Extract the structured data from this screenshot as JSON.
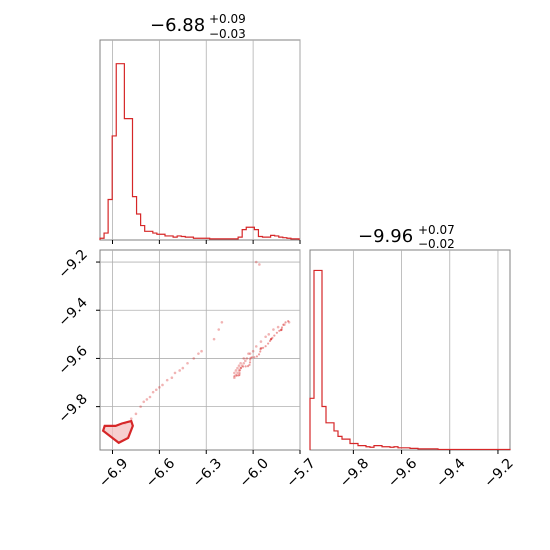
{
  "chart_data": [
    {
      "type": "histogram",
      "panel": "top-left",
      "title": {
        "value": "−6.88",
        "upper": "+0.09",
        "lower": "−0.03"
      },
      "xlim": [
        -6.98,
        -5.7
      ],
      "x_ticks": [
        -6.9,
        -6.6,
        -6.3,
        -6.0,
        -5.7
      ],
      "bins_start": -6.98,
      "bin_width": 0.026,
      "counts": [
        3,
        12,
        70,
        180,
        305,
        305,
        210,
        210,
        75,
        45,
        25,
        15,
        15,
        12,
        10,
        10,
        7,
        7,
        5,
        7,
        6,
        5,
        5,
        3,
        3,
        3,
        3,
        2,
        2,
        2,
        2,
        2,
        2,
        2,
        5,
        18,
        22,
        22,
        18,
        6,
        5,
        5,
        8,
        7,
        5,
        4,
        3,
        2,
        2
      ],
      "ymax": 320,
      "color": "#d62728"
    },
    {
      "type": "scatter",
      "panel": "bottom-left",
      "xlim": [
        -6.98,
        -5.7
      ],
      "ylim": [
        -9.98,
        -9.15
      ],
      "x_ticks": [
        -6.9,
        -6.6,
        -6.3,
        -6.0,
        -5.7
      ],
      "y_ticks": [
        -9.2,
        -9.4,
        -9.6,
        -9.8
      ],
      "x_tick_labels": [
        "−6.9",
        "−6.6",
        "−6.3",
        "−6.0",
        "−5.7"
      ],
      "y_tick_labels": [
        "−9.2",
        "−9.4",
        "−9.6",
        "−9.8"
      ],
      "points": [
        [
          -6.82,
          -9.87
        ],
        [
          -6.78,
          -9.85
        ],
        [
          -6.75,
          -9.83
        ],
        [
          -6.72,
          -9.8
        ],
        [
          -6.7,
          -9.78
        ],
        [
          -6.68,
          -9.77
        ],
        [
          -6.66,
          -9.76
        ],
        [
          -6.64,
          -9.74
        ],
        [
          -6.62,
          -9.73
        ],
        [
          -6.6,
          -9.72
        ],
        [
          -6.58,
          -9.71
        ],
        [
          -6.55,
          -9.69
        ],
        [
          -6.52,
          -9.68
        ],
        [
          -6.5,
          -9.66
        ],
        [
          -6.47,
          -9.65
        ],
        [
          -6.45,
          -9.64
        ],
        [
          -6.42,
          -9.62
        ],
        [
          -6.38,
          -9.6
        ],
        [
          -6.35,
          -9.58
        ],
        [
          -6.33,
          -9.57
        ],
        [
          -6.25,
          -9.52
        ],
        [
          -6.22,
          -9.48
        ],
        [
          -6.2,
          -9.45
        ],
        [
          -6.12,
          -9.68
        ],
        [
          -6.11,
          -9.67
        ],
        [
          -6.1,
          -9.66
        ],
        [
          -6.09,
          -9.65
        ],
        [
          -6.08,
          -9.64
        ],
        [
          -6.07,
          -9.63
        ],
        [
          -6.06,
          -9.62
        ],
        [
          -6.05,
          -9.61
        ],
        [
          -6.04,
          -9.6
        ],
        [
          -6.02,
          -9.58
        ],
        [
          -6.0,
          -9.57
        ],
        [
          -5.98,
          -9.55
        ],
        [
          -5.95,
          -9.53
        ],
        [
          -5.92,
          -9.51
        ],
        [
          -5.9,
          -9.5
        ],
        [
          -5.87,
          -9.48
        ],
        [
          -5.84,
          -9.47
        ],
        [
          -5.8,
          -9.46
        ],
        [
          -5.77,
          -9.45
        ],
        [
          -6.11,
          -9.65
        ],
        [
          -6.1,
          -9.64
        ],
        [
          -6.08,
          -9.62
        ],
        [
          -6.06,
          -9.6
        ],
        [
          -6.03,
          -9.58
        ],
        [
          -6.12,
          -9.66
        ],
        [
          -6.09,
          -9.63
        ],
        [
          -5.98,
          -9.2
        ],
        [
          -5.96,
          -9.21
        ]
      ],
      "density_region": [
        [
          -6.96,
          -9.9
        ],
        [
          -6.9,
          -9.93
        ],
        [
          -6.86,
          -9.95
        ],
        [
          -6.8,
          -9.93
        ],
        [
          -6.77,
          -9.88
        ],
        [
          -6.78,
          -9.86
        ],
        [
          -6.84,
          -9.87
        ],
        [
          -6.88,
          -9.88
        ],
        [
          -6.92,
          -9.88
        ],
        [
          -6.95,
          -9.88
        ]
      ],
      "color": "#d62728"
    },
    {
      "type": "histogram",
      "panel": "bottom-right",
      "title": {
        "value": "−9.96",
        "upper": "+0.07",
        "lower": "−0.02"
      },
      "xlim": [
        -9.98,
        -9.15
      ],
      "x_ticks": [
        -9.8,
        -9.6,
        -9.4,
        -9.2
      ],
      "x_tick_labels": [
        "−9.8",
        "−9.6",
        "−9.4",
        "−9.2"
      ],
      "bins_start": -9.98,
      "bin_width": 0.0166,
      "counts": [
        95,
        330,
        330,
        80,
        50,
        50,
        35,
        25,
        20,
        20,
        12,
        12,
        8,
        8,
        6,
        5,
        8,
        8,
        6,
        6,
        5,
        6,
        4,
        4,
        4,
        3,
        3,
        2,
        2,
        2,
        2,
        2,
        1,
        1,
        1,
        1,
        1,
        1,
        1,
        1,
        1,
        1,
        1,
        1,
        1,
        1,
        1,
        1,
        1,
        1
      ],
      "ymax": 340,
      "color": "#d62728"
    }
  ]
}
